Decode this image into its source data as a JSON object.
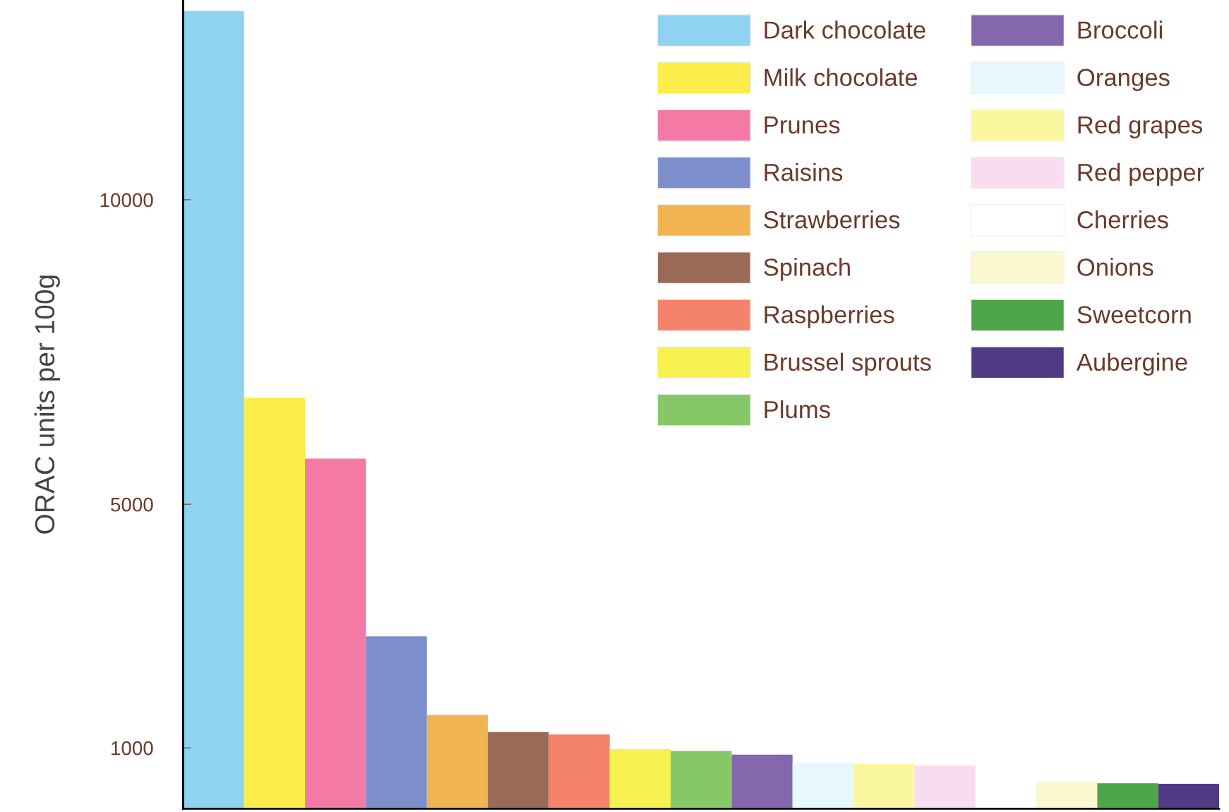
{
  "chart_data": {
    "type": "bar",
    "ylabel": "ORAC units per 100g",
    "categories": [
      null,
      null,
      null,
      null,
      null,
      null,
      null,
      null,
      null,
      null,
      null,
      null,
      null,
      null,
      null,
      null,
      null
    ],
    "series": [
      {
        "name": "Dark chocolate",
        "color": "#8fd3f0",
        "values": [
          13100,
          null,
          null,
          null,
          null,
          null,
          null,
          null,
          null,
          null,
          null,
          null,
          null,
          null,
          null,
          null,
          null
        ]
      },
      {
        "name": "Milk chocolate",
        "color": "#fbee4a",
        "values": [
          null,
          6750,
          null,
          null,
          null,
          null,
          null,
          null,
          null,
          null,
          null,
          null,
          null,
          null,
          null,
          null,
          null
        ]
      },
      {
        "name": "Prunes",
        "color": "#f37aa5",
        "values": [
          null,
          null,
          5750,
          null,
          null,
          null,
          null,
          null,
          null,
          null,
          null,
          null,
          null,
          null,
          null,
          null,
          null
        ]
      },
      {
        "name": "Raisins",
        "color": "#7c8fcc",
        "values": [
          null,
          null,
          null,
          2830,
          null,
          null,
          null,
          null,
          null,
          null,
          null,
          null,
          null,
          null,
          null,
          null,
          null
        ]
      },
      {
        "name": "Strawberries",
        "color": "#f2b450",
        "values": [
          null,
          null,
          null,
          null,
          1540,
          null,
          null,
          null,
          null,
          null,
          null,
          null,
          null,
          null,
          null,
          null,
          null
        ]
      },
      {
        "name": "Spinach",
        "color": "#9b6a57",
        "values": [
          null,
          null,
          null,
          null,
          null,
          1260,
          null,
          null,
          null,
          null,
          null,
          null,
          null,
          null,
          null,
          null,
          null
        ]
      },
      {
        "name": "Raspberries",
        "color": "#f5836b",
        "values": [
          null,
          null,
          null,
          null,
          null,
          null,
          1220,
          null,
          null,
          null,
          null,
          null,
          null,
          null,
          null,
          null,
          null
        ]
      },
      {
        "name": "Brussel sprouts",
        "color": "#f8f250",
        "values": [
          null,
          null,
          null,
          null,
          null,
          null,
          null,
          980,
          null,
          null,
          null,
          null,
          null,
          null,
          null,
          null,
          null
        ]
      },
      {
        "name": "Plums",
        "color": "#86c867",
        "values": [
          null,
          null,
          null,
          null,
          null,
          null,
          null,
          null,
          950,
          null,
          null,
          null,
          null,
          null,
          null,
          null,
          null
        ]
      },
      {
        "name": "Broccoli",
        "color": "#8467ad",
        "values": [
          null,
          null,
          null,
          null,
          null,
          null,
          null,
          null,
          null,
          890,
          null,
          null,
          null,
          null,
          null,
          null,
          null
        ]
      },
      {
        "name": "Oranges",
        "color": "#e6f8fb",
        "values": [
          null,
          null,
          null,
          null,
          null,
          null,
          null,
          null,
          null,
          null,
          750,
          null,
          null,
          null,
          null,
          null,
          null
        ]
      },
      {
        "name": "Red grapes",
        "color": "#fbf7a0",
        "values": [
          null,
          null,
          null,
          null,
          null,
          null,
          null,
          null,
          null,
          null,
          null,
          740,
          null,
          null,
          null,
          null,
          null
        ]
      },
      {
        "name": "Red pepper",
        "color": "#f9dcef",
        "values": [
          null,
          null,
          null,
          null,
          null,
          null,
          null,
          null,
          null,
          null,
          null,
          null,
          710,
          null,
          null,
          null,
          null
        ]
      },
      {
        "name": "Cherries",
        "color": "#ffffff",
        "values": [
          null,
          null,
          null,
          null,
          null,
          null,
          null,
          null,
          null,
          null,
          null,
          null,
          null,
          null,
          null,
          null,
          null
        ]
      },
      {
        "name": "Onions",
        "color": "#fbf8cf",
        "values": [
          null,
          null,
          null,
          null,
          null,
          null,
          null,
          null,
          null,
          null,
          null,
          null,
          null,
          null,
          450,
          null,
          null
        ]
      },
      {
        "name": "Sweetcorn",
        "color": "#4fa54a",
        "values": [
          null,
          null,
          null,
          null,
          null,
          null,
          null,
          null,
          null,
          null,
          null,
          null,
          null,
          null,
          null,
          420,
          null
        ]
      },
      {
        "name": "Aubergine",
        "color": "#503a86",
        "values": [
          null,
          null,
          null,
          null,
          null,
          null,
          null,
          null,
          null,
          null,
          null,
          null,
          null,
          null,
          null,
          null,
          410
        ]
      }
    ],
    "ylim": [
      0,
      13280
    ],
    "yticks": [
      1000,
      5000,
      10000
    ],
    "grid": false,
    "legend": "top right"
  }
}
